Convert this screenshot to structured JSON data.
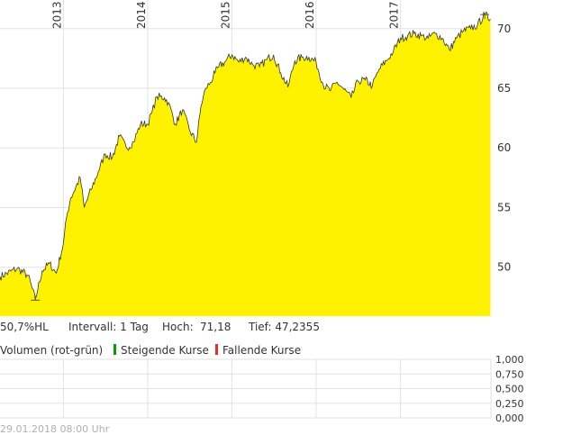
{
  "chart_data": {
    "type": "area",
    "x_ticks": [
      "2013",
      "2014",
      "2015",
      "2016",
      "2017"
    ],
    "y_ticks": [
      50,
      55,
      60,
      65,
      70
    ],
    "ylim": [
      45.9,
      72.4
    ],
    "grid": true,
    "x": [
      "2012-04-01",
      "2012-06-15",
      "2012-08-01",
      "2012-09-01",
      "2012-10-01",
      "2012-11-01",
      "2012-12-01",
      "2013-01-01",
      "2013-01-15",
      "2013-02-01",
      "2013-03-15",
      "2013-04-01",
      "2013-05-01",
      "2013-06-01",
      "2013-07-01",
      "2013-08-01",
      "2013-09-01",
      "2013-10-01",
      "2013-11-01",
      "2013-12-01",
      "2014-01-01",
      "2014-01-20",
      "2014-02-10",
      "2014-03-15",
      "2014-04-01",
      "2014-05-01",
      "2014-06-01",
      "2014-07-01",
      "2014-08-01",
      "2014-08-20",
      "2014-09-10",
      "2014-10-01",
      "2014-10-20",
      "2014-11-05",
      "2014-12-01",
      "2015-01-01",
      "2015-02-01",
      "2015-03-01",
      "2015-04-01",
      "2015-05-01",
      "2015-06-01",
      "2015-07-01",
      "2015-08-01",
      "2015-09-01",
      "2015-10-01",
      "2015-11-01",
      "2015-12-01",
      "2016-01-01",
      "2016-02-01",
      "2016-03-01",
      "2016-04-01",
      "2016-05-01",
      "2016-06-01",
      "2016-07-01",
      "2016-08-01",
      "2016-09-01",
      "2016-10-01",
      "2016-11-01",
      "2016-12-01",
      "2017-01-01",
      "2017-02-01",
      "2017-03-01",
      "2017-04-01",
      "2017-05-01",
      "2017-06-01",
      "2017-07-01",
      "2017-08-01",
      "2017-09-01",
      "2017-10-01",
      "2017-11-01",
      "2017-12-01",
      "2018-01-01",
      "2018-01-26"
    ],
    "values": [
      49.2,
      49.9,
      49.3,
      47.3,
      49.7,
      50.3,
      49.5,
      52.0,
      54.2,
      55.8,
      57.5,
      55.0,
      56.5,
      58.0,
      59.5,
      59.2,
      61.0,
      60.0,
      60.5,
      62.0,
      62.0,
      63.0,
      64.3,
      64.2,
      63.8,
      62.0,
      63.2,
      61.5,
      60.5,
      63.5,
      65.0,
      65.5,
      66.3,
      66.8,
      67.2,
      67.8,
      67.2,
      67.6,
      67.0,
      66.8,
      67.4,
      67.8,
      66.3,
      65.1,
      67.3,
      67.6,
      67.6,
      67.2,
      65.3,
      64.8,
      65.5,
      64.9,
      64.2,
      65.6,
      65.7,
      65.2,
      66.6,
      67.3,
      68.1,
      69.2,
      69.4,
      69.6,
      69.4,
      69.2,
      69.6,
      69.2,
      68.2,
      69.2,
      69.8,
      70.0,
      70.3,
      71.18,
      70.8
    ],
    "high": 71.18,
    "low": 47.2355
  },
  "stats": {
    "range": "50,7%HL",
    "interval": "Intervall: 1 Tag",
    "high_label": "Hoch:",
    "high_value": "71,18",
    "low": "Tief: 47,2355"
  },
  "volume": {
    "title": "Volumen (rot-grün)",
    "rising_label": "Steigende Kurse",
    "falling_label": "Fallende Kurse",
    "rising_color": "#00a000",
    "falling_color": "#e03030",
    "ticks": [
      "1,000",
      "0,750",
      "0,500",
      "0,250",
      "0,000"
    ]
  },
  "footer": {
    "timestamp": "29.01.2018 08:00 Uhr"
  },
  "colors": {
    "fill": "#fff200",
    "line": "#333333",
    "grid": "#e2e2e2"
  }
}
